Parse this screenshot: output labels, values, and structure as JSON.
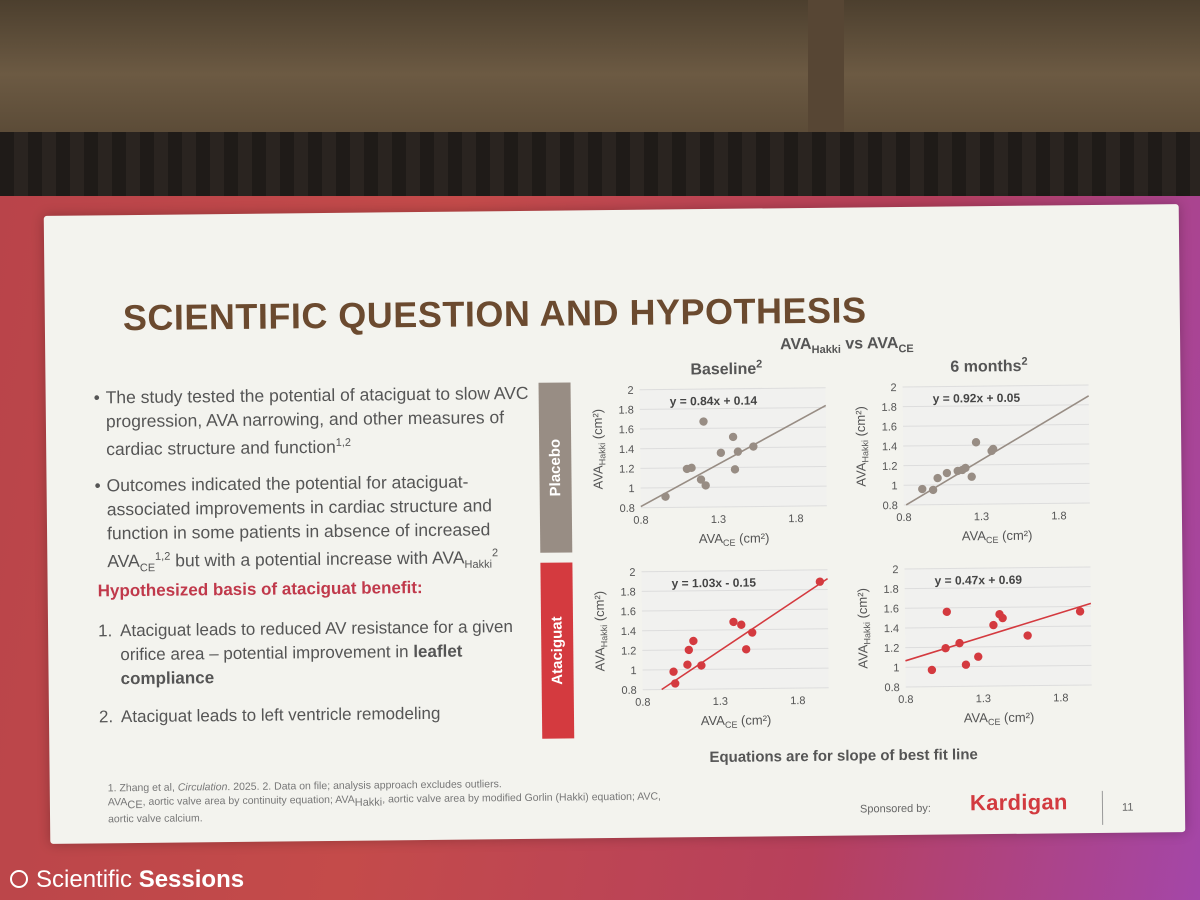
{
  "slide": {
    "title": "SCIENTIFIC QUESTION AND HYPOTHESIS",
    "bullets": [
      {
        "text": "The study tested the potential of ataciguat to slow AVC progression, AVA narrowing, and other measures of cardiac structure and function",
        "sup": "1,2"
      },
      {
        "text_a": "Outcomes indicated the potential for ataciguat-associated improvements in cardiac structure and function in some patients in absence of increased AVA",
        "sub_a": "CE",
        "sup_a": "1,2",
        "text_b": " but with a potential increase with AVA",
        "sub_b": "Hakki",
        "sup_b": "2"
      }
    ],
    "hypothesis_heading": "Hypothesized basis of ataciguat benefit:",
    "hypotheses": [
      {
        "num": "1.",
        "text": "Ataciguat leads to reduced AV resistance for a given orifice area – potential improvement in",
        "bold": "leaflet compliance"
      },
      {
        "num": "2.",
        "text": "Ataciguat leads to left ventricle remodeling"
      }
    ],
    "chart_heading": {
      "a": "AVA",
      "a_sub": "Hakki",
      "vs": " vs ",
      "b": "AVA",
      "b_sub": "CE"
    },
    "col_baseline": "Baseline",
    "col_baseline_sup": "2",
    "col_6m": "6 months",
    "col_6m_sup": "2",
    "row_placebo": "Placebo",
    "row_ataciguat": "Ataciguat",
    "equations_note": "Equations are for slope of best fit line",
    "footnote_line1_a": "1. Zhang et al, ",
    "footnote_line1_i": "Circulation",
    "footnote_line1_b": ". 2025. 2. Data on file; analysis approach excludes outliers.",
    "footnote_line2": "AVA",
    "footnote_line2_sub": "CE",
    "footnote_line2_b": ", aortic valve area by continuity equation; AVA",
    "footnote_line2_sub2": "Hakki",
    "footnote_line2_c": ", aortic valve area by modified Gorlin (Hakki) equation; AVC,",
    "footnote_line3": "aortic valve calcium.",
    "sponsored_by": "Sponsored by:",
    "logo": "Kardigan",
    "page_number": "11"
  },
  "event": {
    "label_a": "Scientific ",
    "label_b": "Sessions"
  },
  "colors": {
    "placebo": "#988d84",
    "ataciguat": "#d43a3f",
    "title": "#6b4a2f",
    "hypothesis": "#c0394b"
  },
  "chart_data": [
    {
      "type": "scatter",
      "row": "Placebo",
      "column": "Baseline",
      "xlabel": "AVA_CE (cm²)",
      "ylabel": "AVA_Hakki (cm²)",
      "xlim": [
        0.8,
        2.0
      ],
      "ylim": [
        0.8,
        2.0
      ],
      "xticks": [
        "0.8",
        "1.3",
        "1.8"
      ],
      "yticks": [
        "0.8",
        "1",
        "1.2",
        "1.4",
        "1.6",
        "1.8",
        "2"
      ],
      "equation": "y = 0.84x + 0.14",
      "fit": {
        "slope": 0.84,
        "intercept": 0.14
      },
      "points": [
        [
          0.96,
          0.91
        ],
        [
          1.1,
          1.19
        ],
        [
          1.13,
          1.2
        ],
        [
          1.19,
          1.08
        ],
        [
          1.21,
          1.67
        ],
        [
          1.22,
          1.02
        ],
        [
          1.32,
          1.35
        ],
        [
          1.4,
          1.51
        ],
        [
          1.41,
          1.18
        ],
        [
          1.43,
          1.36
        ],
        [
          1.53,
          1.41
        ]
      ]
    },
    {
      "type": "scatter",
      "row": "Placebo",
      "column": "6 months",
      "xlabel": "AVA_CE (cm²)",
      "ylabel": "AVA_Hakki (cm²)",
      "xlim": [
        0.8,
        2.0
      ],
      "ylim": [
        0.8,
        2.0
      ],
      "xticks": [
        "0.8",
        "1.3",
        "1.8"
      ],
      "yticks": [
        "0.8",
        "1",
        "1.2",
        "1.4",
        "1.6",
        "1.8",
        "2"
      ],
      "equation": "y = 0.92x + 0.05",
      "fit": {
        "slope": 0.92,
        "intercept": 0.05
      },
      "points": [
        [
          0.92,
          0.96
        ],
        [
          0.99,
          0.95
        ],
        [
          1.02,
          1.07
        ],
        [
          1.08,
          1.12
        ],
        [
          1.15,
          1.14
        ],
        [
          1.18,
          1.15
        ],
        [
          1.2,
          1.17
        ],
        [
          1.24,
          1.08
        ],
        [
          1.27,
          1.43
        ],
        [
          1.37,
          1.34
        ],
        [
          1.38,
          1.36
        ]
      ]
    },
    {
      "type": "scatter",
      "row": "Ataciguat",
      "column": "Baseline",
      "xlabel": "AVA_CE (cm²)",
      "ylabel": "AVA_Hakki (cm²)",
      "xlim": [
        0.8,
        2.0
      ],
      "ylim": [
        0.8,
        2.0
      ],
      "xticks": [
        "0.8",
        "1.3",
        "1.8"
      ],
      "yticks": [
        "0.8",
        "1",
        "1.2",
        "1.4",
        "1.6",
        "1.8",
        "2"
      ],
      "equation": "y = 1.03x - 0.15",
      "fit": {
        "slope": 1.03,
        "intercept": -0.15
      },
      "points": [
        [
          1.0,
          0.98
        ],
        [
          1.01,
          0.86
        ],
        [
          1.09,
          1.05
        ],
        [
          1.1,
          1.2
        ],
        [
          1.13,
          1.29
        ],
        [
          1.18,
          1.04
        ],
        [
          1.39,
          1.48
        ],
        [
          1.44,
          1.45
        ],
        [
          1.47,
          1.2
        ],
        [
          1.51,
          1.37
        ],
        [
          1.95,
          1.88
        ]
      ]
    },
    {
      "type": "scatter",
      "row": "Ataciguat",
      "column": "6 months",
      "xlabel": "AVA_CE (cm²)",
      "ylabel": "AVA_Hakki (cm²)",
      "xlim": [
        0.8,
        2.0
      ],
      "ylim": [
        0.8,
        2.0
      ],
      "xticks": [
        "0.8",
        "1.3",
        "1.8"
      ],
      "yticks": [
        "0.8",
        "1",
        "1.2",
        "1.4",
        "1.6",
        "1.8",
        "2"
      ],
      "equation": "y = 0.47x + 0.69",
      "fit": {
        "slope": 0.47,
        "intercept": 0.69
      },
      "points": [
        [
          0.97,
          0.97
        ],
        [
          1.06,
          1.19
        ],
        [
          1.07,
          1.56
        ],
        [
          1.15,
          1.24
        ],
        [
          1.19,
          1.02
        ],
        [
          1.27,
          1.1
        ],
        [
          1.37,
          1.42
        ],
        [
          1.41,
          1.53
        ],
        [
          1.43,
          1.49
        ],
        [
          1.59,
          1.31
        ],
        [
          1.93,
          1.55
        ]
      ]
    }
  ]
}
